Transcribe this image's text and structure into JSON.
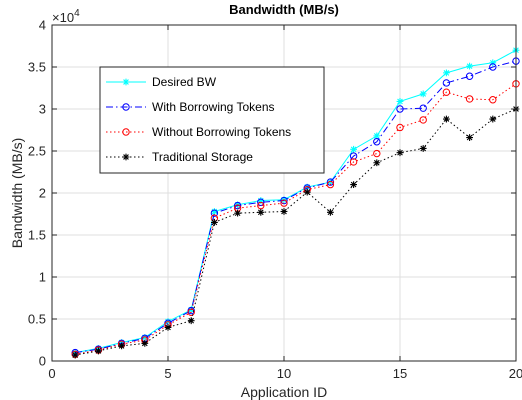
{
  "chart_data": {
    "type": "line",
    "title": "Bandwidth (MB/s)",
    "xlabel": "Application ID",
    "ylabel": "Bandwidth (MB/s)",
    "exponent_label": "×10",
    "exponent_power": "4",
    "xlim": [
      0,
      20
    ],
    "ylim": [
      0,
      4
    ],
    "xticks": [
      0,
      5,
      10,
      15,
      20
    ],
    "yticks": [
      0,
      0.5,
      1,
      1.5,
      2,
      2.5,
      3,
      3.5,
      4
    ],
    "xtick_labels": [
      "0",
      "5",
      "10",
      "15",
      "20"
    ],
    "ytick_labels": [
      "0",
      "0.5",
      "1",
      "1.5",
      "2",
      "2.5",
      "3",
      "3.5",
      "4"
    ],
    "grid": true,
    "legend_position": "upper-left inside",
    "x": [
      1,
      2,
      3,
      4,
      5,
      6,
      7,
      8,
      9,
      10,
      11,
      12,
      13,
      14,
      15,
      16,
      17,
      18,
      19,
      20
    ],
    "series": [
      {
        "name": "Desired BW",
        "color": "#00ffff",
        "line_style": "solid",
        "marker": "asterisk",
        "values": [
          0.1,
          0.15,
          0.22,
          0.28,
          0.47,
          0.61,
          1.78,
          1.86,
          1.91,
          1.92,
          2.07,
          2.13,
          2.52,
          2.68,
          3.09,
          3.18,
          3.43,
          3.51,
          3.55,
          3.7
        ]
      },
      {
        "name": "With Borrowing Tokens",
        "color": "#0000ff",
        "line_style": "dash-dot",
        "marker": "circle",
        "values": [
          0.1,
          0.14,
          0.21,
          0.27,
          0.45,
          0.6,
          1.76,
          1.85,
          1.89,
          1.91,
          2.06,
          2.13,
          2.44,
          2.61,
          3.0,
          3.01,
          3.31,
          3.39,
          3.5,
          3.57
        ]
      },
      {
        "name": "Without Borrowing Tokens",
        "color": "#ff0000",
        "line_style": "dotted",
        "marker": "circle",
        "values": [
          0.08,
          0.13,
          0.2,
          0.25,
          0.43,
          0.58,
          1.7,
          1.82,
          1.85,
          1.88,
          2.04,
          2.1,
          2.37,
          2.47,
          2.78,
          2.87,
          3.2,
          3.12,
          3.11,
          3.3
        ]
      },
      {
        "name": "Traditional Storage",
        "color": "#000000",
        "line_style": "dotted",
        "marker": "asterisk",
        "values": [
          0.07,
          0.12,
          0.18,
          0.21,
          0.4,
          0.48,
          1.65,
          1.76,
          1.77,
          1.78,
          2.01,
          1.77,
          2.1,
          2.36,
          2.48,
          2.53,
          2.88,
          2.66,
          2.88,
          3.0
        ]
      }
    ]
  }
}
